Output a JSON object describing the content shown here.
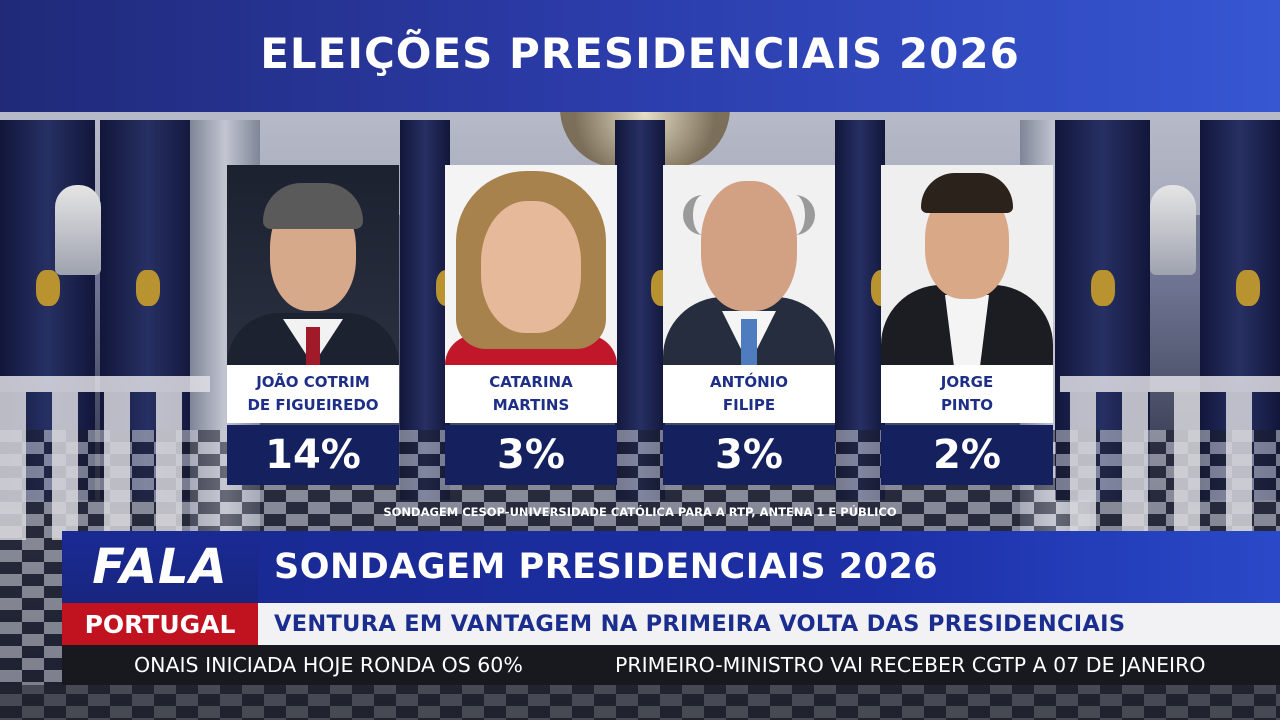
{
  "header": {
    "title": "ELEIÇÕES PRESIDENCIAIS 2026"
  },
  "candidates": [
    {
      "name_line1": "JOÃO COTRIM",
      "name_line2": "DE FIGUEIREDO",
      "percent": "14%"
    },
    {
      "name_line1": "CATARINA",
      "name_line2": "MARTINS",
      "percent": "3%"
    },
    {
      "name_line1": "ANTÓNIO",
      "name_line2": "FILIPE",
      "percent": "3%"
    },
    {
      "name_line1": "JORGE",
      "name_line2": "PINTO",
      "percent": "2%"
    }
  ],
  "credit": "SONDAGEM CESOP-UNIVERSIDADE CATÓLICA PARA A RTP, ANTENA 1 E PÚBLICO",
  "lower_third": {
    "logo_top": "FALA",
    "logo_bottom": "PORTUGAL",
    "headline": "SONDAGEM PRESIDENCIAIS 2026",
    "subheadline": "VENTURA EM VANTAGEM NA PRIMEIRA VOLTA DAS PRESIDENCIAIS"
  },
  "ticker": {
    "items": [
      "ONAIS INICIADA HOJE RONDA OS 60%",
      "PRIMEIRO-MINISTRO VAI RECEBER CGTP A 07 DE JANEIRO"
    ]
  },
  "colors": {
    "brand_blue": "#1a2a94",
    "brand_red": "#c1121f",
    "percent_box": "#15215f"
  }
}
